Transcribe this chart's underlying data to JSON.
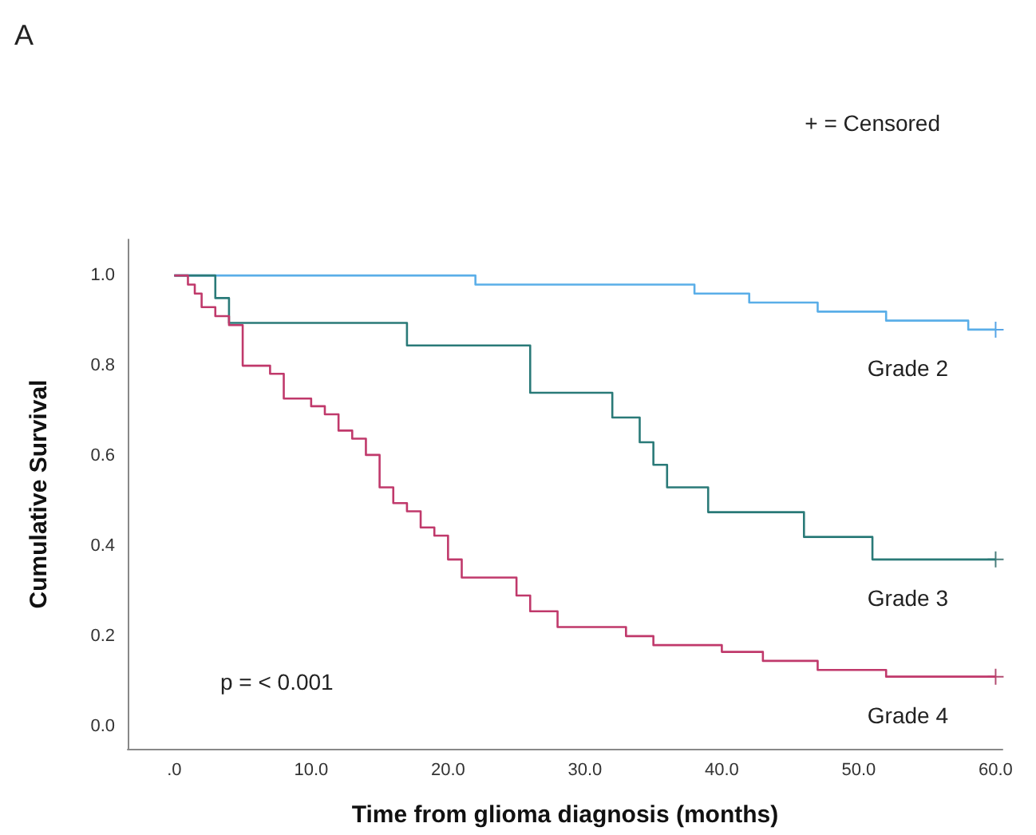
{
  "chart_data": {
    "type": "step",
    "title": "A",
    "xlabel": "Time from glioma diagnosis (months)",
    "ylabel": "Cumulative Survival",
    "annotations": [
      "+ = Censored",
      "p = < 0.001"
    ],
    "xlim": [
      -3.4,
      60.5
    ],
    "ylim": [
      -0.05,
      1.08
    ],
    "xticks": [
      {
        "value": 0,
        "label": ".0"
      },
      {
        "value": 10,
        "label": "10.0"
      },
      {
        "value": 20,
        "label": "20.0"
      },
      {
        "value": 30,
        "label": "30.0"
      },
      {
        "value": 40,
        "label": "40.0"
      },
      {
        "value": 50,
        "label": "50.0"
      },
      {
        "value": 60,
        "label": "60.0"
      }
    ],
    "yticks": [
      {
        "value": 0,
        "label": "0.0"
      },
      {
        "value": 0.2,
        "label": "0.2"
      },
      {
        "value": 0.4,
        "label": "0.4"
      },
      {
        "value": 0.6,
        "label": "0.6"
      },
      {
        "value": 0.8,
        "label": "0.8"
      },
      {
        "value": 1,
        "label": "1.0"
      }
    ],
    "grid": false,
    "marker": "none",
    "line_style": "solid",
    "series": [
      {
        "name": "Grade 2",
        "color": "#5aaee8",
        "x": [
          0,
          22,
          38,
          42,
          47,
          52,
          58,
          60
        ],
        "values": [
          1,
          0.98,
          0.96,
          0.94,
          0.92,
          0.9,
          0.88,
          0.88
        ]
      },
      {
        "name": "Grade 3",
        "color": "#2a7a78",
        "x": [
          0,
          3,
          4,
          17,
          26,
          32,
          34,
          35,
          36,
          39,
          46,
          51,
          60
        ],
        "values": [
          1,
          0.95,
          0.895,
          0.845,
          0.74,
          0.685,
          0.63,
          0.58,
          0.53,
          0.475,
          0.42,
          0.37,
          0.37
        ]
      },
      {
        "name": "Grade 4",
        "color": "#c0396b",
        "x": [
          0,
          1,
          1.5,
          2,
          3,
          4,
          5,
          7,
          8,
          10,
          11,
          12,
          13,
          14,
          15,
          16,
          17,
          18,
          19,
          20,
          21,
          25,
          26,
          28,
          33,
          35,
          40,
          43,
          47,
          52,
          60
        ],
        "values": [
          1,
          0.98,
          0.96,
          0.93,
          0.91,
          0.89,
          0.8,
          0.782,
          0.727,
          0.71,
          0.692,
          0.656,
          0.638,
          0.602,
          0.53,
          0.495,
          0.477,
          0.441,
          0.423,
          0.37,
          0.33,
          0.29,
          0.255,
          0.22,
          0.2,
          0.18,
          0.165,
          0.145,
          0.125,
          0.11,
          0.11
        ]
      },
      {
        "type": "scatter",
        "marker": "cross",
        "color": "#2d8fe0",
        "x": [
          60
        ],
        "values": [
          0.88
        ]
      },
      {
        "type": "scatter",
        "marker": "cross",
        "color": "#1f5f5d",
        "x": [
          60
        ],
        "values": [
          0.37
        ]
      },
      {
        "type": "scatter",
        "marker": "cross",
        "color": "#a0204f",
        "x": [
          60
        ],
        "values": [
          0.11
        ]
      }
    ]
  }
}
